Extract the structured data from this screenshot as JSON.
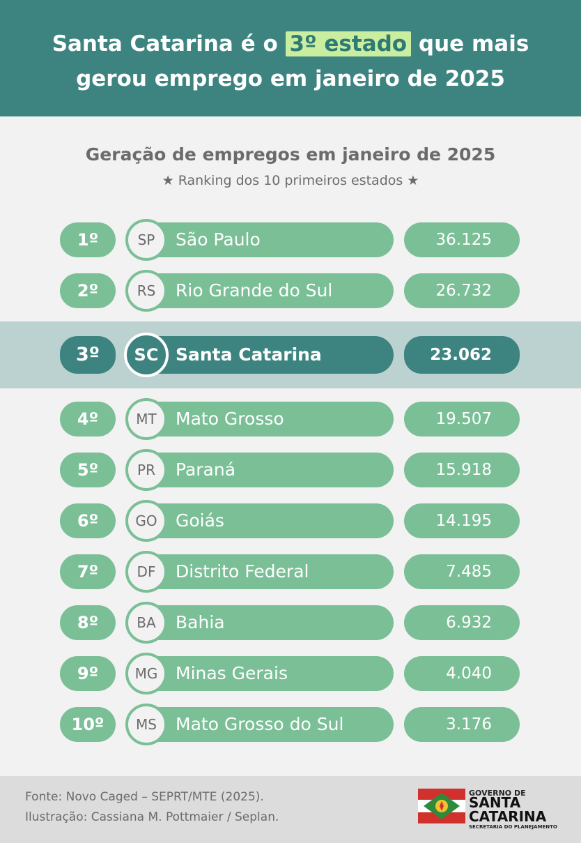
{
  "header": {
    "title_part1": "Santa Catarina é o",
    "title_highlight": "3º estado",
    "title_part2": "que mais",
    "title_line2": "gerou emprego em janeiro de 2025"
  },
  "subtitle": "Geração de empregos em janeiro de 2025",
  "subnote": "★ Ranking dos 10 primeiros estados ★",
  "ranking": [
    {
      "rank": "1º",
      "uf": "SP",
      "state": "São Paulo",
      "value": "36.125"
    },
    {
      "rank": "2º",
      "uf": "RS",
      "state": "Rio Grande do Sul",
      "value": "26.732"
    },
    {
      "rank": "3º",
      "uf": "SC",
      "state": "Santa Catarina",
      "value": "23.062"
    },
    {
      "rank": "4º",
      "uf": "MT",
      "state": "Mato Grosso",
      "value": "19.507"
    },
    {
      "rank": "5º",
      "uf": "PR",
      "state": "Paraná",
      "value": "15.918"
    },
    {
      "rank": "6º",
      "uf": "GO",
      "state": "Goiás",
      "value": "14.195"
    },
    {
      "rank": "7º",
      "uf": "DF",
      "state": "Distrito Federal",
      "value": "7.485"
    },
    {
      "rank": "8º",
      "uf": "BA",
      "state": "Bahia",
      "value": "6.932"
    },
    {
      "rank": "9º",
      "uf": "MG",
      "state": "Minas Gerais",
      "value": "4.040"
    },
    {
      "rank": "10º",
      "uf": "MS",
      "state": "Mato Grosso do Sul",
      "value": "3.176"
    }
  ],
  "footer": {
    "source": "Fonte: Novo Caged – SEPRT/MTE (2025).",
    "credit": "Ilustração: Cassiana M. Pottmaier / Seplan."
  },
  "logo": {
    "line1": "GOVERNO DE",
    "line2": "SANTA",
    "line3": "CATARINA",
    "line4": "SECRETARIA DO PLANEJAMENTO"
  },
  "colors": {
    "primary": "#3d8480",
    "bar": "#7bbf97",
    "highlight_band": "#bcd2d1",
    "title_highlight": "#c9ee9f"
  }
}
